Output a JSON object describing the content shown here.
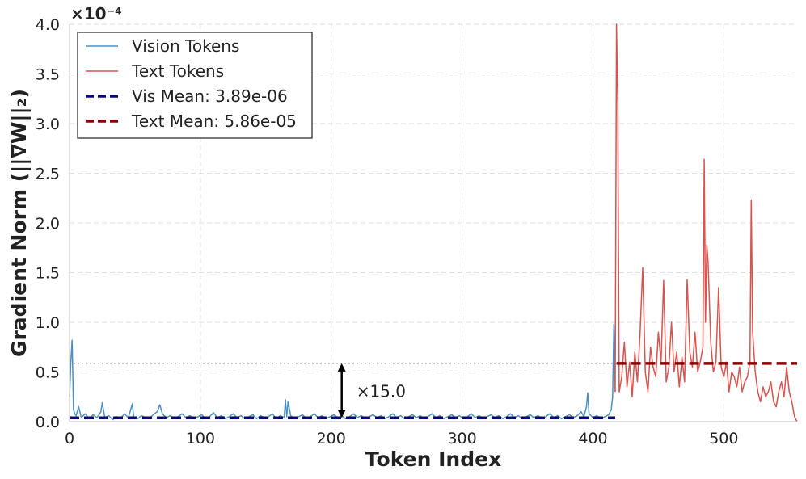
{
  "chart_data": {
    "type": "line",
    "xlabel": "Token Index",
    "ylabel": "Gradient Norm (||∇W||₂)",
    "y_scale_label": "×10⁻⁴",
    "xlim": [
      0,
      556
    ],
    "ylim": [
      0,
      4.0
    ],
    "x_ticks": [
      0,
      100,
      200,
      300,
      400,
      500
    ],
    "y_ticks": [
      "0.0",
      "0.5",
      "1.0",
      "1.5",
      "2.0",
      "2.5",
      "3.0",
      "3.5",
      "4.0"
    ],
    "grid": true,
    "legend_position": "top-left",
    "series": [
      {
        "name": "Vision Tokens",
        "color": "#4a90c2",
        "style": "solid",
        "points": [
          [
            0,
            0.25
          ],
          [
            1,
            0.6
          ],
          [
            2,
            0.82
          ],
          [
            3,
            0.12
          ],
          [
            4,
            0.08
          ],
          [
            5,
            0.06
          ],
          [
            7,
            0.15
          ],
          [
            9,
            0.04
          ],
          [
            12,
            0.08
          ],
          [
            15,
            0.03
          ],
          [
            18,
            0.07
          ],
          [
            21,
            0.04
          ],
          [
            24,
            0.1
          ],
          [
            25,
            0.19
          ],
          [
            27,
            0.04
          ],
          [
            30,
            0.06
          ],
          [
            33,
            0.02
          ],
          [
            36,
            0.05
          ],
          [
            39,
            0.03
          ],
          [
            42,
            0.08
          ],
          [
            45,
            0.04
          ],
          [
            48,
            0.18
          ],
          [
            49,
            0.05
          ],
          [
            52,
            0.03
          ],
          [
            55,
            0.06
          ],
          [
            58,
            0.04
          ],
          [
            61,
            0.03
          ],
          [
            64,
            0.07
          ],
          [
            67,
            0.1
          ],
          [
            69,
            0.17
          ],
          [
            71,
            0.08
          ],
          [
            74,
            0.04
          ],
          [
            77,
            0.06
          ],
          [
            80,
            0.03
          ],
          [
            83,
            0.05
          ],
          [
            86,
            0.08
          ],
          [
            89,
            0.04
          ],
          [
            92,
            0.06
          ],
          [
            95,
            0.03
          ],
          [
            98,
            0.05
          ],
          [
            101,
            0.07
          ],
          [
            104,
            0.03
          ],
          [
            107,
            0.05
          ],
          [
            110,
            0.09
          ],
          [
            113,
            0.04
          ],
          [
            116,
            0.06
          ],
          [
            119,
            0.03
          ],
          [
            122,
            0.05
          ],
          [
            125,
            0.08
          ],
          [
            128,
            0.04
          ],
          [
            131,
            0.06
          ],
          [
            134,
            0.03
          ],
          [
            137,
            0.05
          ],
          [
            140,
            0.07
          ],
          [
            143,
            0.03
          ],
          [
            146,
            0.06
          ],
          [
            149,
            0.04
          ],
          [
            152,
            0.05
          ],
          [
            155,
            0.08
          ],
          [
            158,
            0.03
          ],
          [
            161,
            0.06
          ],
          [
            164,
            0.04
          ],
          [
            165,
            0.22
          ],
          [
            166,
            0.05
          ],
          [
            167,
            0.2
          ],
          [
            169,
            0.06
          ],
          [
            172,
            0.03
          ],
          [
            175,
            0.05
          ],
          [
            178,
            0.07
          ],
          [
            181,
            0.03
          ],
          [
            184,
            0.05
          ],
          [
            187,
            0.08
          ],
          [
            190,
            0.04
          ],
          [
            193,
            0.06
          ],
          [
            196,
            0.03
          ],
          [
            199,
            0.05
          ],
          [
            202,
            0.07
          ],
          [
            205,
            0.04
          ],
          [
            208,
            0.06
          ],
          [
            211,
            0.03
          ],
          [
            214,
            0.05
          ],
          [
            217,
            0.08
          ],
          [
            220,
            0.04
          ],
          [
            223,
            0.06
          ],
          [
            226,
            0.03
          ],
          [
            229,
            0.05
          ],
          [
            232,
            0.07
          ],
          [
            235,
            0.04
          ],
          [
            238,
            0.06
          ],
          [
            241,
            0.03
          ],
          [
            244,
            0.05
          ],
          [
            247,
            0.08
          ],
          [
            250,
            0.04
          ],
          [
            253,
            0.06
          ],
          [
            256,
            0.03
          ],
          [
            259,
            0.05
          ],
          [
            262,
            0.07
          ],
          [
            265,
            0.04
          ],
          [
            268,
            0.06
          ],
          [
            271,
            0.03
          ],
          [
            274,
            0.05
          ],
          [
            277,
            0.08
          ],
          [
            280,
            0.04
          ],
          [
            283,
            0.06
          ],
          [
            286,
            0.03
          ],
          [
            289,
            0.05
          ],
          [
            292,
            0.07
          ],
          [
            295,
            0.04
          ],
          [
            298,
            0.06
          ],
          [
            301,
            0.03
          ],
          [
            304,
            0.05
          ],
          [
            307,
            0.08
          ],
          [
            310,
            0.04
          ],
          [
            313,
            0.06
          ],
          [
            316,
            0.03
          ],
          [
            319,
            0.05
          ],
          [
            322,
            0.07
          ],
          [
            325,
            0.04
          ],
          [
            328,
            0.06
          ],
          [
            331,
            0.03
          ],
          [
            334,
            0.05
          ],
          [
            337,
            0.08
          ],
          [
            340,
            0.04
          ],
          [
            343,
            0.06
          ],
          [
            346,
            0.03
          ],
          [
            349,
            0.05
          ],
          [
            352,
            0.07
          ],
          [
            355,
            0.04
          ],
          [
            358,
            0.06
          ],
          [
            361,
            0.03
          ],
          [
            364,
            0.05
          ],
          [
            367,
            0.08
          ],
          [
            370,
            0.04
          ],
          [
            373,
            0.06
          ],
          [
            376,
            0.03
          ],
          [
            379,
            0.05
          ],
          [
            382,
            0.07
          ],
          [
            385,
            0.04
          ],
          [
            388,
            0.06
          ],
          [
            391,
            0.1
          ],
          [
            393,
            0.05
          ],
          [
            395,
            0.15
          ],
          [
            396,
            0.29
          ],
          [
            397,
            0.08
          ],
          [
            400,
            0.04
          ],
          [
            403,
            0.06
          ],
          [
            406,
            0.03
          ],
          [
            409,
            0.05
          ],
          [
            412,
            0.07
          ],
          [
            414,
            0.12
          ],
          [
            415,
            0.25
          ],
          [
            416,
            0.98
          ],
          [
            417,
            0.3
          ]
        ]
      },
      {
        "name": "Text Tokens",
        "color": "#d9534f",
        "style": "solid",
        "points": [
          [
            417,
            0.3
          ],
          [
            418,
            4.0
          ],
          [
            419,
            3.2
          ],
          [
            420,
            0.3
          ],
          [
            422,
            0.45
          ],
          [
            424,
            0.8
          ],
          [
            426,
            0.35
          ],
          [
            428,
            0.6
          ],
          [
            430,
            0.25
          ],
          [
            432,
            0.7
          ],
          [
            434,
            0.4
          ],
          [
            436,
            0.9
          ],
          [
            438,
            1.55
          ],
          [
            440,
            0.5
          ],
          [
            442,
            0.3
          ],
          [
            444,
            0.75
          ],
          [
            446,
            0.55
          ],
          [
            448,
            0.45
          ],
          [
            450,
            0.9
          ],
          [
            452,
            0.6
          ],
          [
            454,
            1.42
          ],
          [
            456,
            0.4
          ],
          [
            458,
            0.55
          ],
          [
            460,
            1.0
          ],
          [
            462,
            0.5
          ],
          [
            464,
            0.7
          ],
          [
            466,
            0.35
          ],
          [
            468,
            0.65
          ],
          [
            470,
            0.4
          ],
          [
            472,
            1.43
          ],
          [
            474,
            0.7
          ],
          [
            476,
            0.55
          ],
          [
            478,
            0.9
          ],
          [
            480,
            0.5
          ],
          [
            482,
            0.6
          ],
          [
            484,
            0.75
          ],
          [
            485,
            2.64
          ],
          [
            486,
            1.0
          ],
          [
            487,
            1.78
          ],
          [
            488,
            1.6
          ],
          [
            490,
            0.8
          ],
          [
            492,
            0.5
          ],
          [
            494,
            0.6
          ],
          [
            496,
            1.35
          ],
          [
            498,
            0.55
          ],
          [
            500,
            0.45
          ],
          [
            502,
            0.6
          ],
          [
            504,
            0.3
          ],
          [
            506,
            0.5
          ],
          [
            508,
            0.45
          ],
          [
            510,
            0.35
          ],
          [
            512,
            0.55
          ],
          [
            514,
            0.3
          ],
          [
            516,
            0.4
          ],
          [
            518,
            0.45
          ],
          [
            520,
            0.6
          ],
          [
            521,
            2.23
          ],
          [
            522,
            0.9
          ],
          [
            524,
            0.5
          ],
          [
            526,
            0.3
          ],
          [
            528,
            0.2
          ],
          [
            530,
            0.35
          ],
          [
            532,
            0.25
          ],
          [
            534,
            0.3
          ],
          [
            536,
            0.4
          ],
          [
            538,
            0.2
          ],
          [
            540,
            0.15
          ],
          [
            542,
            0.3
          ],
          [
            544,
            0.4
          ],
          [
            546,
            0.25
          ],
          [
            548,
            0.55
          ],
          [
            550,
            0.3
          ],
          [
            552,
            0.2
          ],
          [
            554,
            0.05
          ],
          [
            556,
            0.0
          ]
        ]
      },
      {
        "name": "Vis Mean: 3.89e-06",
        "color": "#0a0a6b",
        "style": "dashed",
        "points": [
          [
            0,
            0.0389
          ],
          [
            417,
            0.0389
          ]
        ]
      },
      {
        "name": "Text Mean: 5.86e-05",
        "color": "#8b0000",
        "style": "dashed",
        "points": [
          [
            418,
            0.586
          ],
          [
            556,
            0.586
          ]
        ]
      }
    ],
    "reference_line": {
      "y": 0.586,
      "from_x": 0,
      "to_x": 418,
      "color": "#aaaaaa",
      "style": "dotted"
    },
    "annotation": {
      "text": "×15.0",
      "x": 208,
      "y_from": 0.0389,
      "y_to": 0.586
    }
  }
}
